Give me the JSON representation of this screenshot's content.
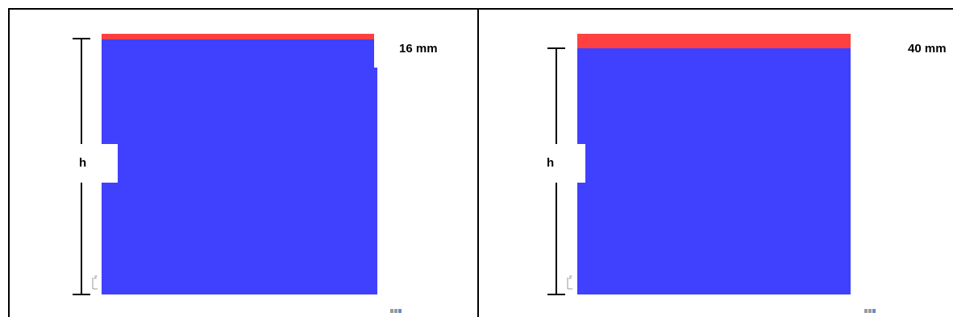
{
  "panels": [
    {
      "thickness_label": "16 mm",
      "dimension_label": "h",
      "thickness_mm": 16
    },
    {
      "thickness_label": "40 mm",
      "dimension_label": "h",
      "thickness_mm": 40
    }
  ],
  "colors": {
    "block": "#4040ff",
    "cap": "#ff4040",
    "lines": "#000000"
  },
  "icons": {
    "axis": "axis-triad-icon",
    "logo": "software-logo-icon"
  }
}
